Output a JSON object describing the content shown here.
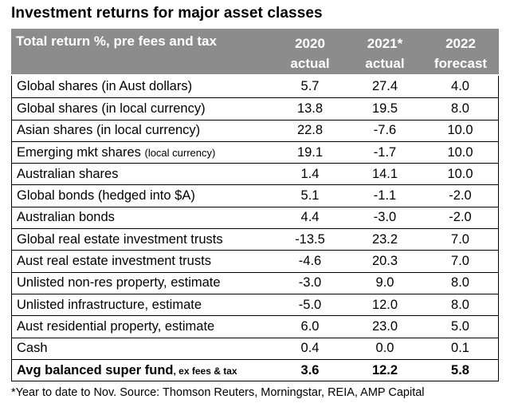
{
  "title": "Investment returns for major asset classes",
  "header": {
    "label": "Total return %, pre fees and tax",
    "col1": [
      "2020",
      "actual"
    ],
    "col2": [
      "2021*",
      "actual"
    ],
    "col3": [
      "2022",
      "forecast"
    ]
  },
  "rows": [
    {
      "label": "Global shares (in Aust dollars)",
      "note": "",
      "v2020": "5.7",
      "v2021": "27.4",
      "v2022": "4.0"
    },
    {
      "label": "Global shares (in local currency)",
      "note": "",
      "v2020": "13.8",
      "v2021": "19.5",
      "v2022": "8.0"
    },
    {
      "label": "Asian shares (in local currency)",
      "note": "",
      "v2020": "22.8",
      "v2021": "-7.6",
      "v2022": "10.0"
    },
    {
      "label": "Emerging mkt shares ",
      "note": "(local currency)",
      "v2020": "19.1",
      "v2021": "-1.7",
      "v2022": "10.0"
    },
    {
      "label": "Australian shares",
      "note": "",
      "v2020": "1.4",
      "v2021": "14.1",
      "v2022": "10.0"
    },
    {
      "label": "Global bonds (hedged into $A)",
      "note": "",
      "v2020": "5.1",
      "v2021": "-1.1",
      "v2022": "-2.0"
    },
    {
      "label": "Australian bonds",
      "note": "",
      "v2020": "4.4",
      "v2021": "-3.0",
      "v2022": "-2.0"
    },
    {
      "label": "Global real estate investment trusts",
      "note": "",
      "v2020": "-13.5",
      "v2021": "23.2",
      "v2022": "7.0"
    },
    {
      "label": "Aust real estate investment trusts",
      "note": "",
      "v2020": "-4.6",
      "v2021": "20.3",
      "v2022": "7.0"
    },
    {
      "label": "Unlisted non-res property, estimate",
      "note": "",
      "v2020": "-3.0",
      "v2021": "9.0",
      "v2022": "8.0"
    },
    {
      "label": "Unlisted infrastructure, estimate",
      "note": "",
      "v2020": "-5.0",
      "v2021": "12.0",
      "v2022": "8.0"
    },
    {
      "label": "Aust residential property, estimate",
      "note": "",
      "v2020": "6.0",
      "v2021": "23.0",
      "v2022": "5.0"
    },
    {
      "label": "Cash",
      "note": "",
      "v2020": "0.4",
      "v2021": "0.0",
      "v2022": "0.1"
    }
  ],
  "total": {
    "label": "Avg balanced super fund",
    "note": ", ex fees & tax",
    "v2020": "3.6",
    "v2021": "12.2",
    "v2022": "5.8"
  },
  "footnote": "*Year to date to Nov. Source: Thomson Reuters, Morningstar, REIA, AMP Capital"
}
